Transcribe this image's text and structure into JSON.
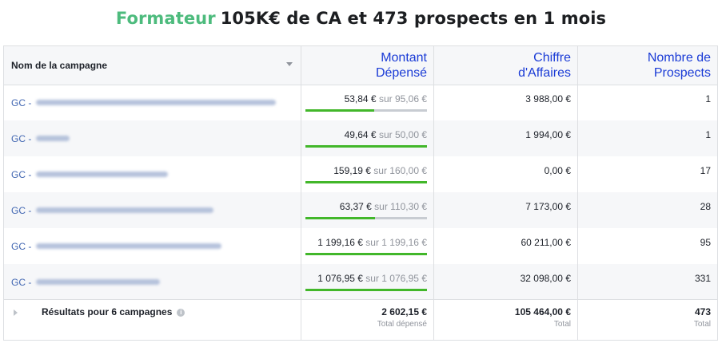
{
  "headline": {
    "accent": "Formateur",
    "rest": "105K€ de CA et 473 prospects en 1 mois"
  },
  "colors": {
    "accent_green": "#4dbb7d",
    "header_blue": "#1a3bd6",
    "link_blue": "#4267b2",
    "progress_green": "#42b72a"
  },
  "table": {
    "columns": {
      "name": "Nom de la campagne",
      "spent_line1": "Montant",
      "spent_line2": "Dépensé",
      "revenue_line1": "Chiffre",
      "revenue_line2": "d'Affaires",
      "prospects_line1": "Nombre de",
      "prospects_line2": "Prospects"
    },
    "rows": [
      {
        "prefix": "GC -",
        "spent": "53,84 €",
        "budget": "sur 95,06 €",
        "progress": 0.566,
        "revenue": "3 988,00 €",
        "prospects": "1"
      },
      {
        "prefix": "GC -",
        "spent": "49,64 €",
        "budget": "sur 50,00 €",
        "progress": 1.0,
        "revenue": "1 994,00 €",
        "prospects": "1"
      },
      {
        "prefix": "GC -",
        "spent": "159,19 €",
        "budget": "sur 160,00 €",
        "progress": 1.0,
        "revenue": "0,00 €",
        "prospects": "17"
      },
      {
        "prefix": "GC -",
        "spent": "63,37 €",
        "budget": "sur 110,30 €",
        "progress": 0.575,
        "revenue": "7 173,00 €",
        "prospects": "28"
      },
      {
        "prefix": "GC -",
        "spent": "1 199,16 €",
        "budget": "sur 1 199,16 €",
        "progress": 1.0,
        "revenue": "60 211,00 €",
        "prospects": "95"
      },
      {
        "prefix": "GC -",
        "spent": "1 076,95 €",
        "budget": "sur 1 076,95 €",
        "progress": 1.0,
        "revenue": "32 098,00 €",
        "prospects": "331"
      }
    ],
    "footer": {
      "label": "Résultats pour 6 campagnes",
      "info_icon": "i",
      "spent_total": "2 602,15 €",
      "spent_sub": "Total dépensé",
      "revenue_total": "105 464,00 €",
      "revenue_sub": "Total",
      "prospects_total": "473",
      "prospects_sub": "Total"
    }
  }
}
